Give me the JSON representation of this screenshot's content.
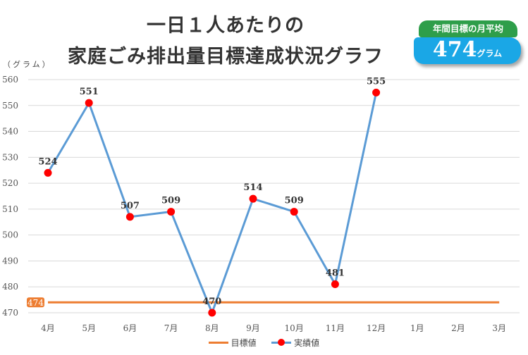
{
  "title_line1": "一日１人あたりの",
  "title_line2": "家庭ごみ排出量目標達成状況グラフ",
  "badge": {
    "label": "年間目標の月平均",
    "value": "474",
    "unit": "グラム"
  },
  "chart_data": {
    "type": "line",
    "ylabel": "（グラム）",
    "ylim": [
      470,
      560
    ],
    "yticks": [
      "470",
      "480",
      "490",
      "500",
      "510",
      "520",
      "530",
      "540",
      "550",
      "560"
    ],
    "categories": [
      "4月",
      "5月",
      "6月",
      "7月",
      "8月",
      "9月",
      "10月",
      "11月",
      "12月",
      "1月",
      "2月",
      "3月"
    ],
    "grid": true,
    "legend_position": "bottom",
    "series": [
      {
        "name": "目標値",
        "color": "#ed7d31",
        "values": [
          474,
          474,
          474,
          474,
          474,
          474,
          474,
          474,
          474,
          474,
          474,
          474
        ],
        "label": "474"
      },
      {
        "name": "実績値",
        "color": "#5b9bd5",
        "marker_color": "#ff0000",
        "values": [
          524,
          551,
          507,
          509,
          470,
          514,
          509,
          481,
          555,
          null,
          null,
          null
        ]
      }
    ]
  }
}
